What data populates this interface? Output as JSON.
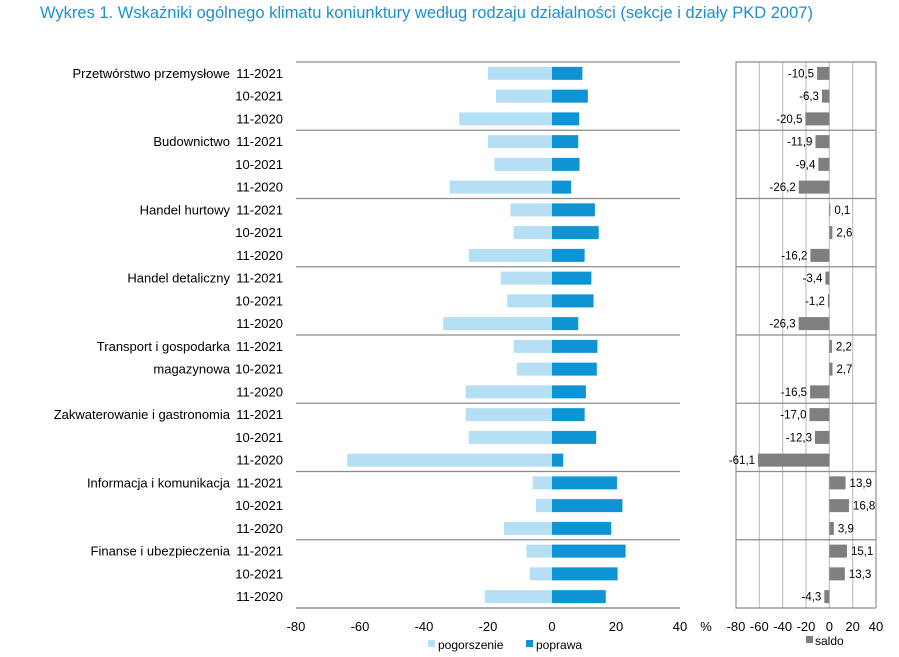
{
  "title": "Wykres 1. Wskaźniki ogólnego klimatu koniunktury według rodzaju działalności (sekcje i działy PKD 2007)",
  "colors": {
    "title": "#1e90d0",
    "pogorszenie": "#b4dff4",
    "poprawa": "#0d94d4",
    "saldo": "#7f7f7f",
    "grid": "#c8c8c8",
    "separator": "#8c8c8c"
  },
  "chart_data": [
    {
      "type": "bar",
      "orientation": "horizontal",
      "xlim": [
        -80,
        40
      ],
      "xticks": [
        -80,
        -60,
        -40,
        -20,
        0,
        20,
        40
      ],
      "xlabel": "%",
      "legend": [
        "pogorszenie",
        "poprawa"
      ],
      "groups": [
        {
          "name": [
            "Przetwórstwo przemysłowe"
          ],
          "periods": [
            "11-2021",
            "10-2021",
            "11-2020"
          ],
          "pogorszenie": [
            -20,
            -17.5,
            -29
          ],
          "poprawa": [
            9.5,
            11.2,
            8.5
          ]
        },
        {
          "name": [
            "Budownictwo"
          ],
          "periods": [
            "11-2021",
            "10-2021",
            "11-2020"
          ],
          "pogorszenie": [
            -20,
            -18,
            -32
          ],
          "poprawa": [
            8.2,
            8.6,
            6
          ]
        },
        {
          "name": [
            "Handel hurtowy"
          ],
          "periods": [
            "11-2021",
            "10-2021",
            "11-2020"
          ],
          "pogorszenie": [
            -13,
            -12,
            -26
          ],
          "poprawa": [
            13.4,
            14.6,
            10.2
          ]
        },
        {
          "name": [
            "Handel detaliczny"
          ],
          "periods": [
            "11-2021",
            "10-2021",
            "11-2020"
          ],
          "pogorszenie": [
            -16,
            -14,
            -34
          ],
          "poprawa": [
            12.3,
            13,
            8.2
          ]
        },
        {
          "name": [
            "Transport i gospodarka",
            "magazynowa"
          ],
          "periods": [
            "11-2021",
            "10-2021",
            "11-2020"
          ],
          "pogorszenie": [
            -12,
            -11,
            -27
          ],
          "poprawa": [
            14.2,
            14,
            10.6
          ]
        },
        {
          "name": [
            "Zakwaterowanie i gastronomia"
          ],
          "periods": [
            "11-2021",
            "10-2021",
            "11-2020"
          ],
          "pogorszenie": [
            -27,
            -26,
            -64
          ],
          "poprawa": [
            10.2,
            13.8,
            3.5
          ]
        },
        {
          "name": [
            "Informacja i komunikacja"
          ],
          "periods": [
            "11-2021",
            "10-2021",
            "11-2020"
          ],
          "pogorszenie": [
            -6,
            -5,
            -15
          ],
          "poprawa": [
            20.3,
            22,
            18.5
          ]
        },
        {
          "name": [
            "Finanse i ubezpieczenia"
          ],
          "periods": [
            "11-2021",
            "10-2021",
            "11-2020"
          ],
          "pogorszenie": [
            -8,
            -7,
            -21
          ],
          "poprawa": [
            23,
            20.5,
            16.8
          ]
        }
      ]
    },
    {
      "type": "bar",
      "orientation": "horizontal",
      "xlim": [
        -80,
        40
      ],
      "xticks": [
        -80,
        -60,
        -40,
        -20,
        0,
        20,
        40
      ],
      "legend": [
        "saldo"
      ],
      "values": [
        -10.5,
        -6.3,
        -20.5,
        -11.9,
        -9.4,
        -26.2,
        0.1,
        2.6,
        -16.2,
        -3.4,
        -1.2,
        -26.3,
        2.2,
        2.7,
        -16.5,
        -17.0,
        -12.3,
        -61.1,
        13.9,
        16.8,
        3.9,
        15.1,
        13.3,
        -4.3
      ],
      "labels": [
        "-10,5",
        "-6,3",
        "-20,5",
        "-11,9",
        "-9,4",
        "-26,2",
        "0,1",
        "2,6",
        "-16,2",
        "-3,4",
        "-1,2",
        "-26,3",
        "2,2",
        "2,7",
        "-16,5",
        "-17,0",
        "-12,3",
        "-61,1",
        "13,9",
        "16,8",
        "3,9",
        "15,1",
        "13,3",
        "-4,3"
      ]
    }
  ]
}
